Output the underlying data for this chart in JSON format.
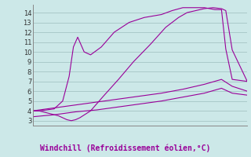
{
  "title": "Windchill (Refroidissement éolien,°C)",
  "bg_color": "#cce8e8",
  "line_color": "#990099",
  "grid_color": "#aacaca",
  "axis_color": "#888888",
  "ylim": [
    2.5,
    14.8
  ],
  "yticks": [
    3,
    4,
    5,
    6,
    7,
    8,
    9,
    10,
    11,
    12,
    13,
    14
  ],
  "n_points": 100,
  "line1_x": [
    0,
    3,
    12,
    16,
    18,
    20,
    22,
    27,
    33,
    40,
    47,
    55,
    62,
    68,
    72,
    76,
    80,
    84,
    88,
    90,
    93,
    100
  ],
  "line1_y": [
    4.0,
    4.0,
    3.5,
    3.1,
    3.0,
    3.1,
    3.3,
    4.0,
    5.5,
    7.2,
    9.0,
    10.8,
    12.5,
    13.5,
    14.0,
    14.2,
    14.4,
    14.5,
    14.4,
    14.2,
    10.2,
    7.0
  ],
  "line2_x": [
    0,
    3,
    10,
    14,
    17,
    19,
    21,
    24,
    27,
    32,
    38,
    45,
    52,
    60,
    65,
    70,
    75,
    80,
    85,
    88,
    90,
    93,
    100
  ],
  "line2_y": [
    4.0,
    4.0,
    4.2,
    5.0,
    7.5,
    10.5,
    11.5,
    10.0,
    9.7,
    10.5,
    12.0,
    13.0,
    13.5,
    13.8,
    14.2,
    14.5,
    14.5,
    14.5,
    14.3,
    14.3,
    10.3,
    7.2,
    7.0
  ],
  "line3_x": [
    0,
    10,
    20,
    30,
    40,
    50,
    60,
    70,
    80,
    88,
    93,
    100
  ],
  "line3_y": [
    4.0,
    4.3,
    4.6,
    4.9,
    5.2,
    5.5,
    5.8,
    6.2,
    6.7,
    7.2,
    6.5,
    6.0
  ],
  "line4_x": [
    0,
    10,
    20,
    30,
    40,
    50,
    60,
    70,
    80,
    88,
    93,
    100
  ],
  "line4_y": [
    3.4,
    3.6,
    3.9,
    4.1,
    4.4,
    4.7,
    5.0,
    5.4,
    5.8,
    6.3,
    5.8,
    5.6
  ]
}
